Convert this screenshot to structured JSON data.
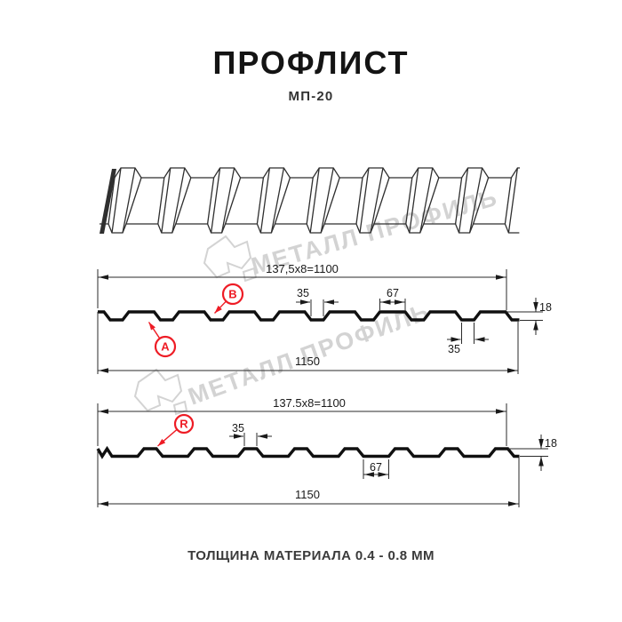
{
  "title": "ПРОФЛИСТ",
  "subtitle": "МП-20",
  "footer": "ТОЛЩИНА МАТЕРИАЛА 0.4 - 0.8 ММ",
  "watermark": {
    "brand": "МЕТАЛЛ ПРОФИЛЬ",
    "color": "#c9c9c9"
  },
  "colors": {
    "accent_red": "#ee1c25",
    "line_black": "#1a1a1a",
    "background": "#ffffff"
  },
  "profile_front": {
    "point_labels": {
      "a": "A",
      "b": "B"
    },
    "dims": {
      "module": "137,5x8=1100",
      "rib_width": "35",
      "flat_width": "67",
      "height": "18",
      "rib_bottom_width": "35",
      "overall_width": "1150"
    }
  },
  "profile_back": {
    "point_labels": {
      "r": "R"
    },
    "dims": {
      "module": "137.5x8=1100",
      "rib_width": "35",
      "flat_width": "67",
      "height": "18",
      "overall_width": "1150"
    }
  }
}
